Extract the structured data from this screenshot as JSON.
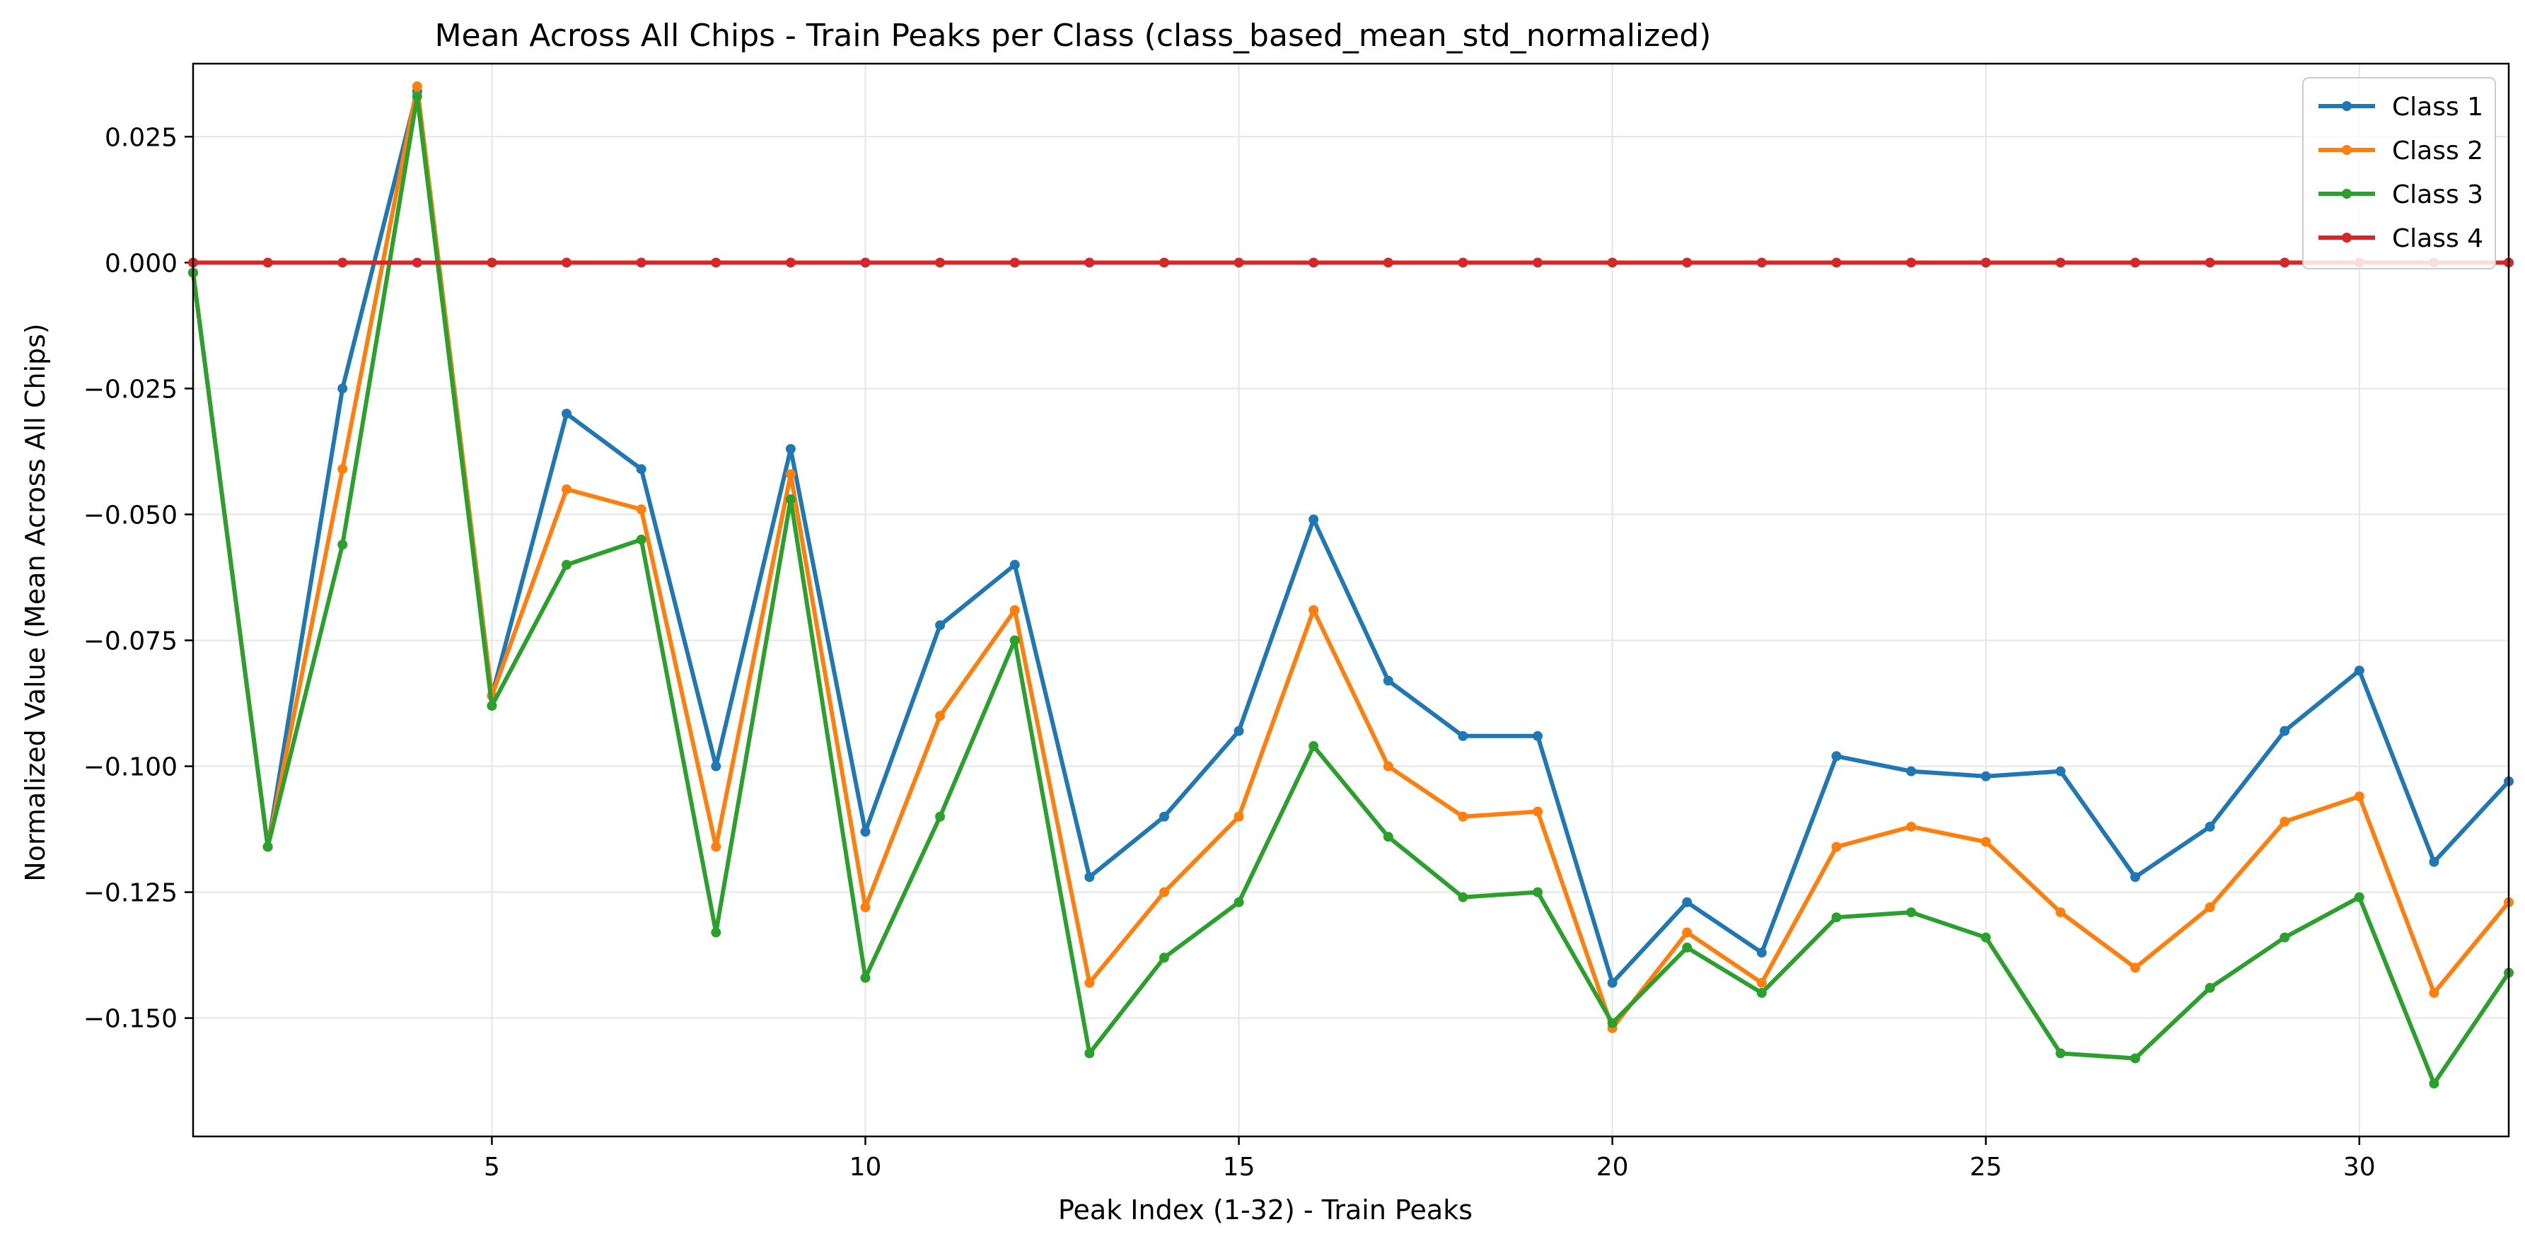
{
  "chart_data": {
    "type": "line",
    "title": "Mean Across All Chips - Train Peaks per Class (class_based_mean_std_normalized)",
    "xlabel": "Peak Index (1-32) - Train Peaks",
    "ylabel": "Normalized Value (Mean Across All Chips)",
    "xlim": [
      1,
      32
    ],
    "ylim": [
      -0.1735,
      0.0395
    ],
    "xticks": [
      5,
      10,
      15,
      20,
      25,
      30
    ],
    "xtick_labels": [
      "5",
      "10",
      "15",
      "20",
      "25",
      "30"
    ],
    "yticks": [
      0.025,
      0.0,
      -0.025,
      -0.05,
      -0.075,
      -0.1,
      -0.125,
      -0.15
    ],
    "ytick_labels": [
      "0.025",
      "0.000",
      "−0.025",
      "−0.050",
      "−0.075",
      "−0.100",
      "−0.125",
      "−0.150"
    ],
    "grid": true,
    "legend_position": "upper right",
    "x": [
      1,
      2,
      3,
      4,
      5,
      6,
      7,
      8,
      9,
      10,
      11,
      12,
      13,
      14,
      15,
      16,
      17,
      18,
      19,
      20,
      21,
      22,
      23,
      24,
      25,
      26,
      27,
      28,
      29,
      30,
      31,
      32
    ],
    "series": [
      {
        "name": "Class 1",
        "color": "#1f77b4",
        "values": [
          -0.002,
          -0.116,
          -0.025,
          0.034,
          -0.086,
          -0.03,
          -0.041,
          -0.1,
          -0.037,
          -0.113,
          -0.072,
          -0.06,
          -0.122,
          -0.11,
          -0.093,
          -0.051,
          -0.083,
          -0.094,
          -0.094,
          -0.143,
          -0.127,
          -0.137,
          -0.098,
          -0.101,
          -0.102,
          -0.101,
          -0.122,
          -0.112,
          -0.093,
          -0.081,
          -0.119,
          -0.103
        ]
      },
      {
        "name": "Class 2",
        "color": "#ff7f0e",
        "values": [
          -0.002,
          -0.116,
          -0.041,
          0.035,
          -0.086,
          -0.045,
          -0.049,
          -0.116,
          -0.042,
          -0.128,
          -0.09,
          -0.069,
          -0.143,
          -0.125,
          -0.11,
          -0.069,
          -0.1,
          -0.11,
          -0.109,
          -0.152,
          -0.133,
          -0.143,
          -0.116,
          -0.112,
          -0.115,
          -0.129,
          -0.14,
          -0.128,
          -0.111,
          -0.106,
          -0.145,
          -0.127
        ]
      },
      {
        "name": "Class 3",
        "color": "#2ca02c",
        "values": [
          -0.002,
          -0.116,
          -0.056,
          0.033,
          -0.088,
          -0.06,
          -0.055,
          -0.133,
          -0.047,
          -0.142,
          -0.11,
          -0.075,
          -0.157,
          -0.138,
          -0.127,
          -0.096,
          -0.114,
          -0.126,
          -0.125,
          -0.151,
          -0.136,
          -0.145,
          -0.13,
          -0.129,
          -0.134,
          -0.157,
          -0.158,
          -0.144,
          -0.134,
          -0.126,
          -0.163,
          -0.141
        ]
      },
      {
        "name": "Class 4",
        "color": "#d62728",
        "values": [
          0,
          0,
          0,
          0,
          0,
          0,
          0,
          0,
          0,
          0,
          0,
          0,
          0,
          0,
          0,
          0,
          0,
          0,
          0,
          0,
          0,
          0,
          0,
          0,
          0,
          0,
          0,
          0,
          0,
          0,
          0,
          0
        ]
      }
    ]
  }
}
